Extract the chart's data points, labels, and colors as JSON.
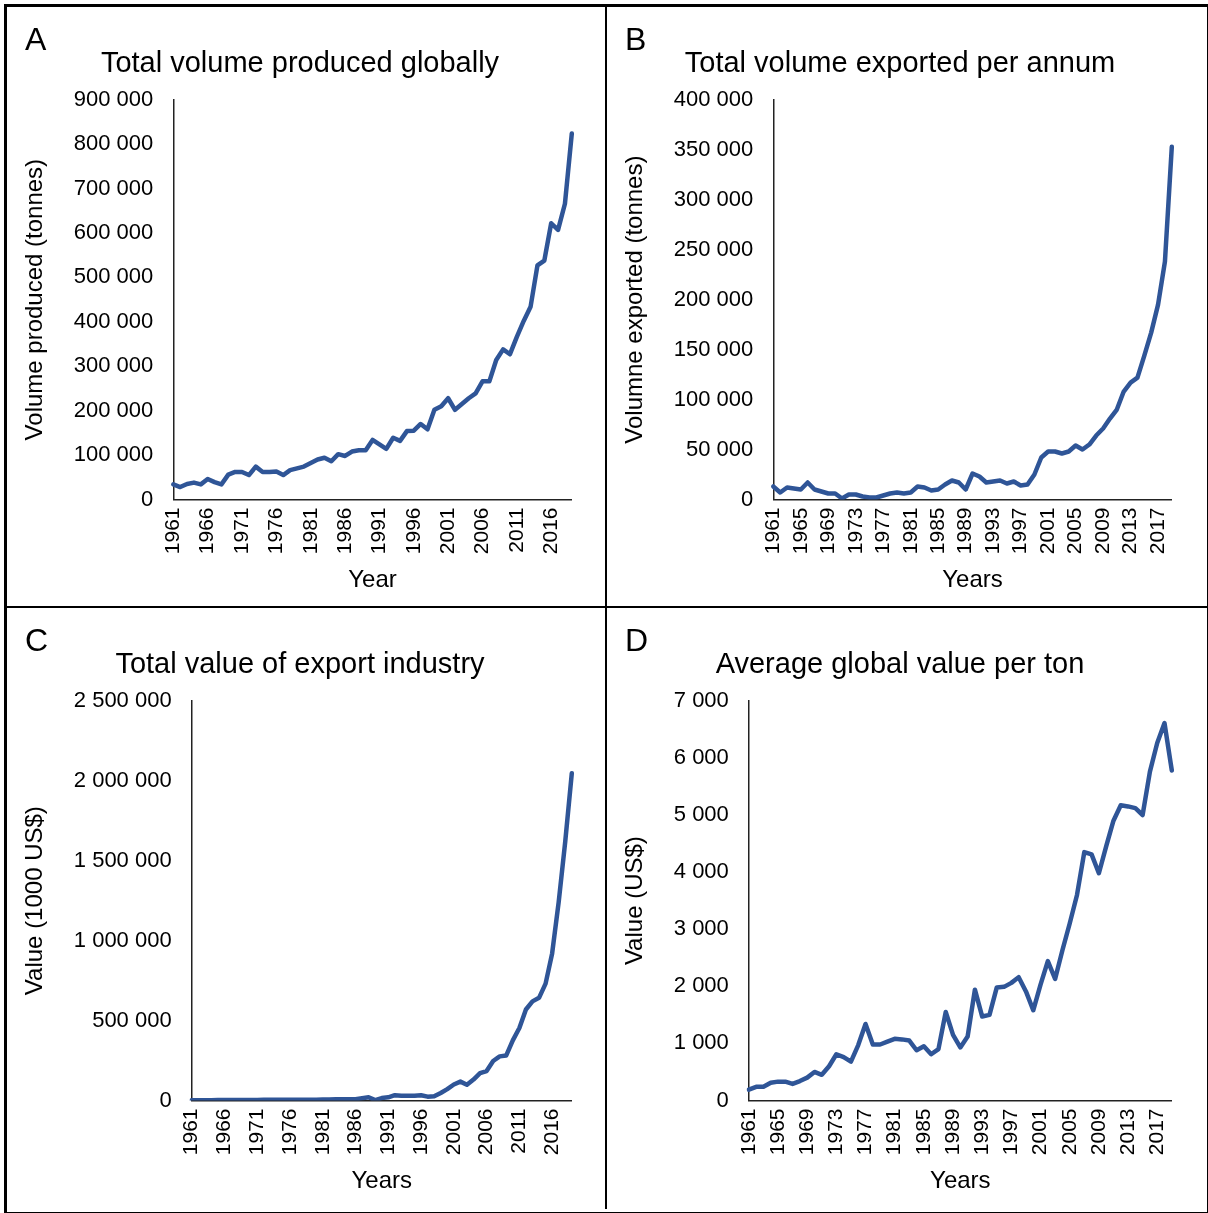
{
  "chart_data": [
    {
      "type": "line",
      "title": "Total volume produced globally",
      "xlabel": "Year",
      "ylabel": "Volume produced (tonnes)",
      "annotations": [
        "A"
      ],
      "color": "#2f5597",
      "categories": [
        "1961",
        null,
        null,
        null,
        null,
        "1966",
        null,
        null,
        null,
        null,
        "1971",
        null,
        null,
        null,
        null,
        "1976",
        null,
        null,
        null,
        null,
        "1981",
        null,
        null,
        null,
        null,
        "1986",
        null,
        null,
        null,
        null,
        "1991",
        null,
        null,
        null,
        null,
        "1996",
        null,
        null,
        null,
        null,
        "2001",
        null,
        null,
        null,
        null,
        "2006",
        null,
        null,
        null,
        null,
        "2011",
        null,
        null,
        null,
        null,
        "2016",
        null,
        null,
        null
      ],
      "values": [
        34000,
        28000,
        35000,
        38000,
        34000,
        46000,
        39000,
        34000,
        56000,
        62000,
        62000,
        55000,
        74000,
        62000,
        62000,
        63000,
        55000,
        66000,
        70000,
        74000,
        82000,
        90000,
        94000,
        86000,
        102000,
        98000,
        108000,
        111000,
        111000,
        134000,
        124000,
        114000,
        139000,
        132000,
        154000,
        155000,
        170000,
        158000,
        202000,
        210000,
        228000,
        202000,
        215000,
        228000,
        239000,
        266000,
        266000,
        314000,
        338000,
        327000,
        366000,
        402000,
        434000,
        527000,
        538000,
        622000,
        607000,
        666000,
        824000
      ],
      "ylim": [
        0,
        900000
      ],
      "yticks": [
        {
          "value": 0,
          "label": "0"
        },
        {
          "value": 100000,
          "label": "100 000"
        },
        {
          "value": 200000,
          "label": "200 000"
        },
        {
          "value": 300000,
          "label": "300 000"
        },
        {
          "value": 400000,
          "label": "400 000"
        },
        {
          "value": 500000,
          "label": "500 000"
        },
        {
          "value": 600000,
          "label": "600 000"
        },
        {
          "value": 700000,
          "label": "700 000"
        },
        {
          "value": 800000,
          "label": "800 000"
        },
        {
          "value": 900000,
          "label": "900 000"
        }
      ]
    },
    {
      "type": "line",
      "title": "Total volume exported per annum",
      "xlabel": "Years",
      "ylabel": "Volumne exported (tonnes)",
      "annotations": [
        "B"
      ],
      "color": "#2f5597",
      "categories": [
        "1961",
        null,
        null,
        null,
        "1965",
        null,
        null,
        null,
        "1969",
        null,
        null,
        null,
        "1973",
        null,
        null,
        null,
        "1977",
        null,
        null,
        null,
        "1981",
        null,
        null,
        null,
        "1985",
        null,
        null,
        null,
        "1989",
        null,
        null,
        null,
        "1993",
        null,
        null,
        null,
        "1997",
        null,
        null,
        null,
        "2001",
        null,
        null,
        null,
        "2005",
        null,
        null,
        null,
        "2009",
        null,
        null,
        null,
        "2013",
        null,
        null,
        null,
        "2017",
        null,
        null
      ],
      "values": [
        13000,
        7000,
        12000,
        11000,
        10000,
        17000,
        10000,
        8000,
        6000,
        6000,
        1000,
        5000,
        5000,
        3000,
        2000,
        2000,
        4000,
        6000,
        7000,
        6000,
        7000,
        13000,
        12000,
        9000,
        10000,
        15000,
        19000,
        17000,
        10000,
        26000,
        23000,
        17000,
        18000,
        19000,
        16000,
        18000,
        14000,
        15000,
        25000,
        42000,
        48000,
        48000,
        46000,
        48000,
        54000,
        50000,
        55000,
        64000,
        71000,
        81000,
        90000,
        108000,
        117000,
        122000,
        144000,
        167000,
        195000,
        238000,
        353000
      ],
      "ylim": [
        0,
        400000
      ],
      "yticks": [
        {
          "value": 0,
          "label": "0"
        },
        {
          "value": 50000,
          "label": "50 000"
        },
        {
          "value": 100000,
          "label": "100 000"
        },
        {
          "value": 150000,
          "label": "150 000"
        },
        {
          "value": 200000,
          "label": "200 000"
        },
        {
          "value": 250000,
          "label": "250 000"
        },
        {
          "value": 300000,
          "label": "300 000"
        },
        {
          "value": 350000,
          "label": "350 000"
        },
        {
          "value": 400000,
          "label": "400 000"
        }
      ]
    },
    {
      "type": "line",
      "title": "Total value of export industry",
      "xlabel": "Years",
      "ylabel": "Value (1000 US$)",
      "annotations": [
        "C"
      ],
      "color": "#2f5597",
      "categories": [
        "1961",
        null,
        null,
        null,
        null,
        "1966",
        null,
        null,
        null,
        null,
        "1971",
        null,
        null,
        null,
        null,
        "1976",
        null,
        null,
        null,
        null,
        "1981",
        null,
        null,
        null,
        null,
        "1986",
        null,
        null,
        null,
        null,
        "1991",
        null,
        null,
        null,
        null,
        "1996",
        null,
        null,
        null,
        null,
        "2001",
        null,
        null,
        null,
        null,
        "2006",
        null,
        null,
        null,
        null,
        "2011",
        null,
        null,
        null,
        null,
        "2016",
        null,
        null,
        null
      ],
      "values": [
        2000,
        2000,
        2000,
        2000,
        3000,
        3000,
        3000,
        3000,
        3000,
        3000,
        3000,
        4000,
        4000,
        4000,
        4000,
        4000,
        4000,
        5000,
        5000,
        5000,
        6000,
        6000,
        7000,
        7000,
        7000,
        8000,
        14000,
        20000,
        2000,
        15000,
        20000,
        33000,
        29000,
        29000,
        29000,
        33000,
        24000,
        27000,
        47000,
        71000,
        100000,
        118000,
        98000,
        131000,
        171000,
        184000,
        247000,
        276000,
        282000,
        376000,
        453000,
        569000,
        620000,
        642000,
        731000,
        920000,
        1242000,
        1620000,
        2047000
      ],
      "ylim": [
        0,
        2500000
      ],
      "yticks": [
        {
          "value": 0,
          "label": "0"
        },
        {
          "value": 500000,
          "label": "500 000"
        },
        {
          "value": 1000000,
          "label": "1 000 000"
        },
        {
          "value": 1500000,
          "label": "1 500 000"
        },
        {
          "value": 2000000,
          "label": "2 000 000"
        },
        {
          "value": 2500000,
          "label": "2 500 000"
        }
      ]
    },
    {
      "type": "line",
      "title": "Average global value per ton",
      "xlabel": "Years",
      "ylabel": "Value (US$)",
      "annotations": [
        "D"
      ],
      "color": "#2f5597",
      "categories": [
        "1961",
        null,
        null,
        null,
        "1965",
        null,
        null,
        null,
        "1969",
        null,
        null,
        null,
        "1973",
        null,
        null,
        null,
        "1977",
        null,
        null,
        null,
        "1981",
        null,
        null,
        null,
        "1985",
        null,
        null,
        null,
        "1989",
        null,
        null,
        null,
        "1993",
        null,
        null,
        null,
        "1997",
        null,
        null,
        null,
        "2001",
        null,
        null,
        null,
        "2005",
        null,
        null,
        null,
        "2009",
        null,
        null,
        null,
        "2013",
        null,
        null,
        null,
        "2017",
        null,
        null
      ],
      "values": [
        190,
        240,
        240,
        310,
        330,
        330,
        290,
        340,
        400,
        500,
        450,
        600,
        810,
        760,
        680,
        970,
        1340,
        980,
        980,
        1030,
        1080,
        1070,
        1050,
        880,
        950,
        810,
        900,
        1550,
        1150,
        930,
        1120,
        1940,
        1470,
        1500,
        1980,
        1990,
        2060,
        2160,
        1910,
        1580,
        2030,
        2440,
        2130,
        2630,
        3100,
        3600,
        4350,
        4310,
        3980,
        4450,
        4900,
        5170,
        5150,
        5120,
        5000,
        5760,
        6260,
        6610,
        5780
      ],
      "ylim": [
        0,
        7000
      ],
      "yticks": [
        {
          "value": 0,
          "label": "0"
        },
        {
          "value": 1000,
          "label": "1 000"
        },
        {
          "value": 2000,
          "label": "2 000"
        },
        {
          "value": 3000,
          "label": "3 000"
        },
        {
          "value": 4000,
          "label": "4 000"
        },
        {
          "value": 5000,
          "label": "5 000"
        },
        {
          "value": 6000,
          "label": "6 000"
        },
        {
          "value": 7000,
          "label": "7 000"
        }
      ]
    }
  ]
}
